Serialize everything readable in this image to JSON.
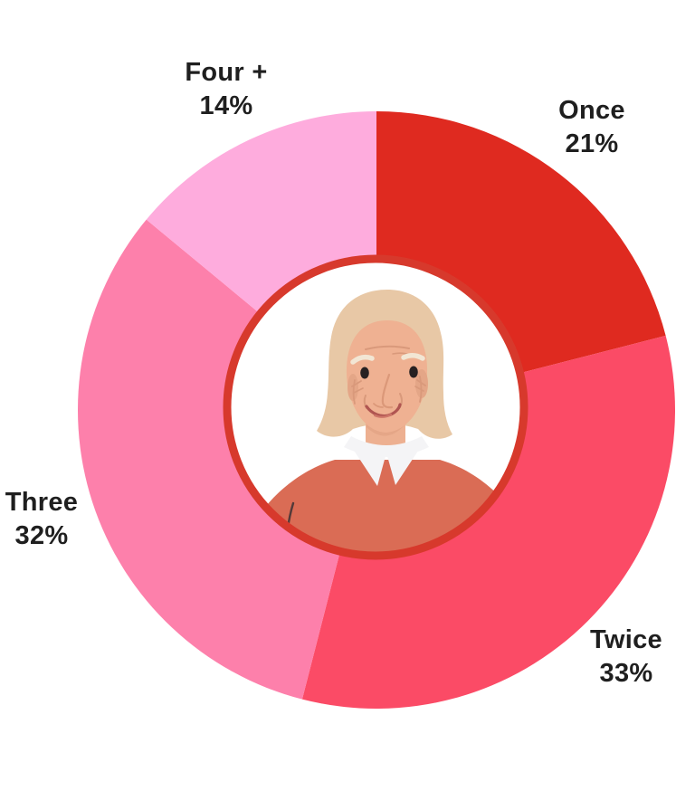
{
  "page": {
    "background": "#FFFFFF"
  },
  "chart_data": {
    "type": "pie",
    "variant": "donut",
    "title": "",
    "unit": "percent",
    "categories": [
      "Once",
      "Twice",
      "Three",
      "Four +"
    ],
    "values": [
      21,
      33,
      32,
      14
    ],
    "slices": [
      {
        "label": "Once",
        "value": 21,
        "display": "21%",
        "color": "#DF2A20"
      },
      {
        "label": "Twice",
        "value": 33,
        "display": "33%",
        "color": "#FB4B66"
      },
      {
        "label": "Three",
        "value": 32,
        "display": "32%",
        "color": "#FD80AB"
      },
      {
        "label": "Four +",
        "value": 14,
        "display": "14%",
        "color": "#FEACDD"
      }
    ],
    "start_angle_deg": 0,
    "direction": "clockwise",
    "legend_position": "labels-outside-around-donut",
    "label_text_color": "#1F1F1F",
    "center_decoration": "elderly-woman-avatar",
    "center_ring_color": "#D7392C",
    "background": "#FFFFFF"
  }
}
